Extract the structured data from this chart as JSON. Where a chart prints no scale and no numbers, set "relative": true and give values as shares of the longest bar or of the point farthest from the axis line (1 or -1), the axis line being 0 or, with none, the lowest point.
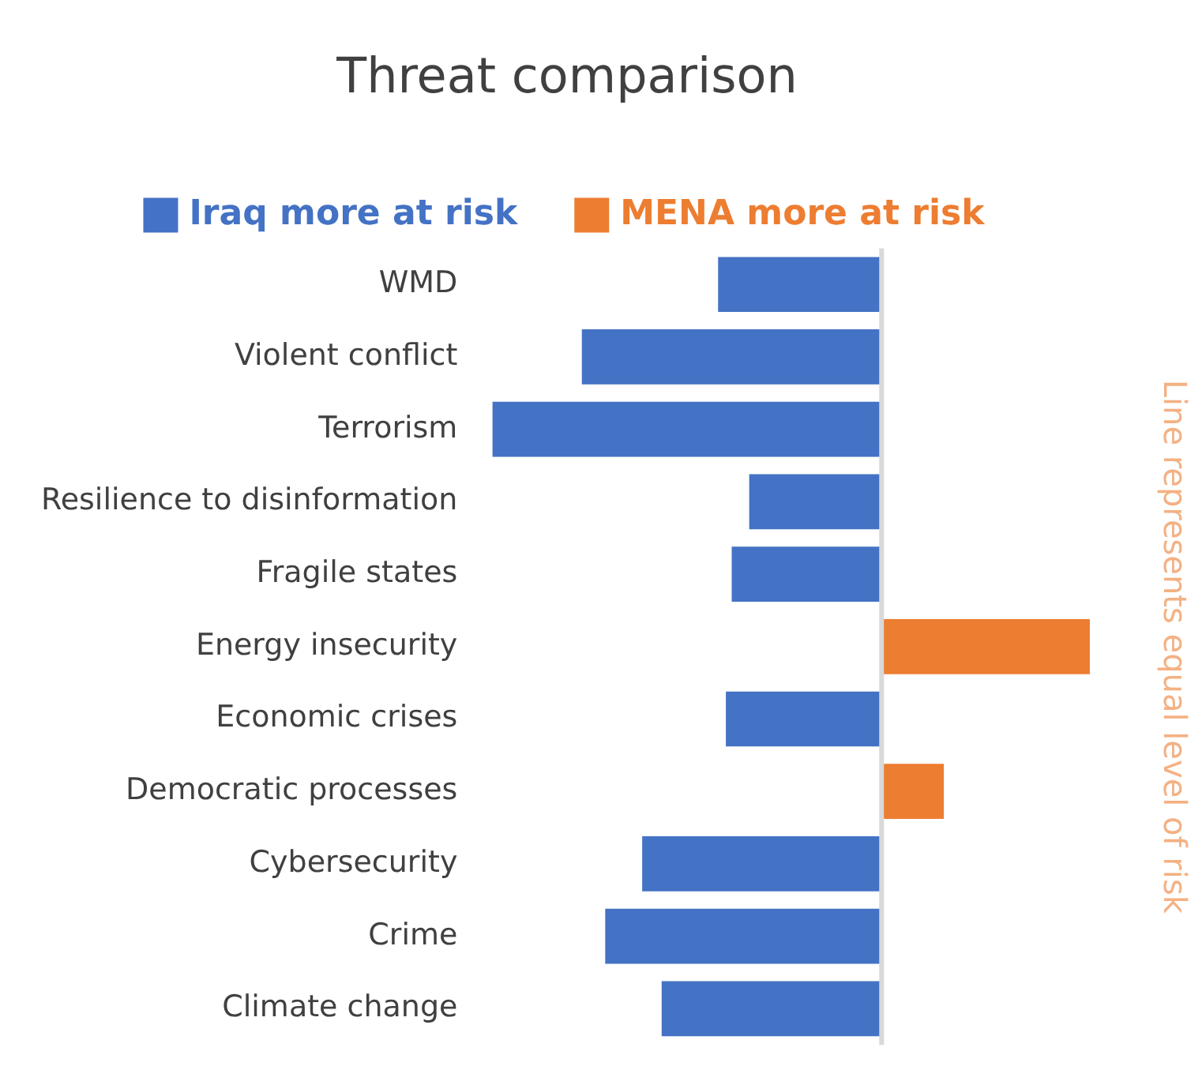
{
  "chart_data": {
    "type": "bar",
    "orientation": "horizontal",
    "relative": true,
    "title": "Threat comparison",
    "categories": [
      "WMD",
      "Violent conflict",
      "Terrorism",
      "Resilience to disinformation",
      "Fragile states",
      "Energy insecurity",
      "Economic crises",
      "Democratic processes",
      "Cybersecurity",
      "Crime",
      "Climate change"
    ],
    "series": [
      {
        "name": "Iraq more at risk",
        "color": "#4472c4",
        "values": [
          -0.42,
          -0.77,
          -1,
          -0.34,
          -0.385,
          null,
          -0.4,
          null,
          -0.615,
          -0.71,
          -0.565
        ]
      },
      {
        "name": "MENA more at risk",
        "color": "#ed7d31",
        "values": [
          null,
          null,
          null,
          null,
          null,
          0.535,
          null,
          0.16,
          null,
          null,
          null
        ]
      }
    ],
    "ref_lines": [
      {
        "axis": "x",
        "value": 0,
        "color": "#d9d9d9"
      }
    ],
    "annotations": [
      "Line represents equal level of risk"
    ],
    "legend": "top",
    "grid": false
  }
}
